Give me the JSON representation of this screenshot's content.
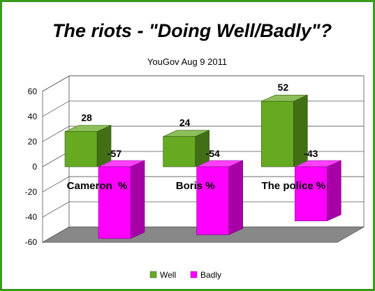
{
  "chart_data": {
    "type": "bar",
    "title": "The riots - \"Doing Well/Badly\"?",
    "subtitle": "YouGov Aug 9 2011",
    "categories": [
      "Cameron  %",
      "Boris %",
      "The police %"
    ],
    "series": [
      {
        "name": "Well",
        "values": [
          28,
          24,
          52
        ],
        "color": "#66aa22"
      },
      {
        "name": "Badly",
        "values": [
          -57,
          -54,
          -43
        ],
        "color": "#ff00ff"
      }
    ],
    "yticks": [
      60,
      40,
      20,
      0,
      -20,
      -40,
      -60
    ],
    "ylim": [
      -60,
      60
    ],
    "grid": true,
    "legend_position": "bottom",
    "three_d": true,
    "colors": {
      "floor": "#888888",
      "border": "#3a9a1a"
    }
  }
}
